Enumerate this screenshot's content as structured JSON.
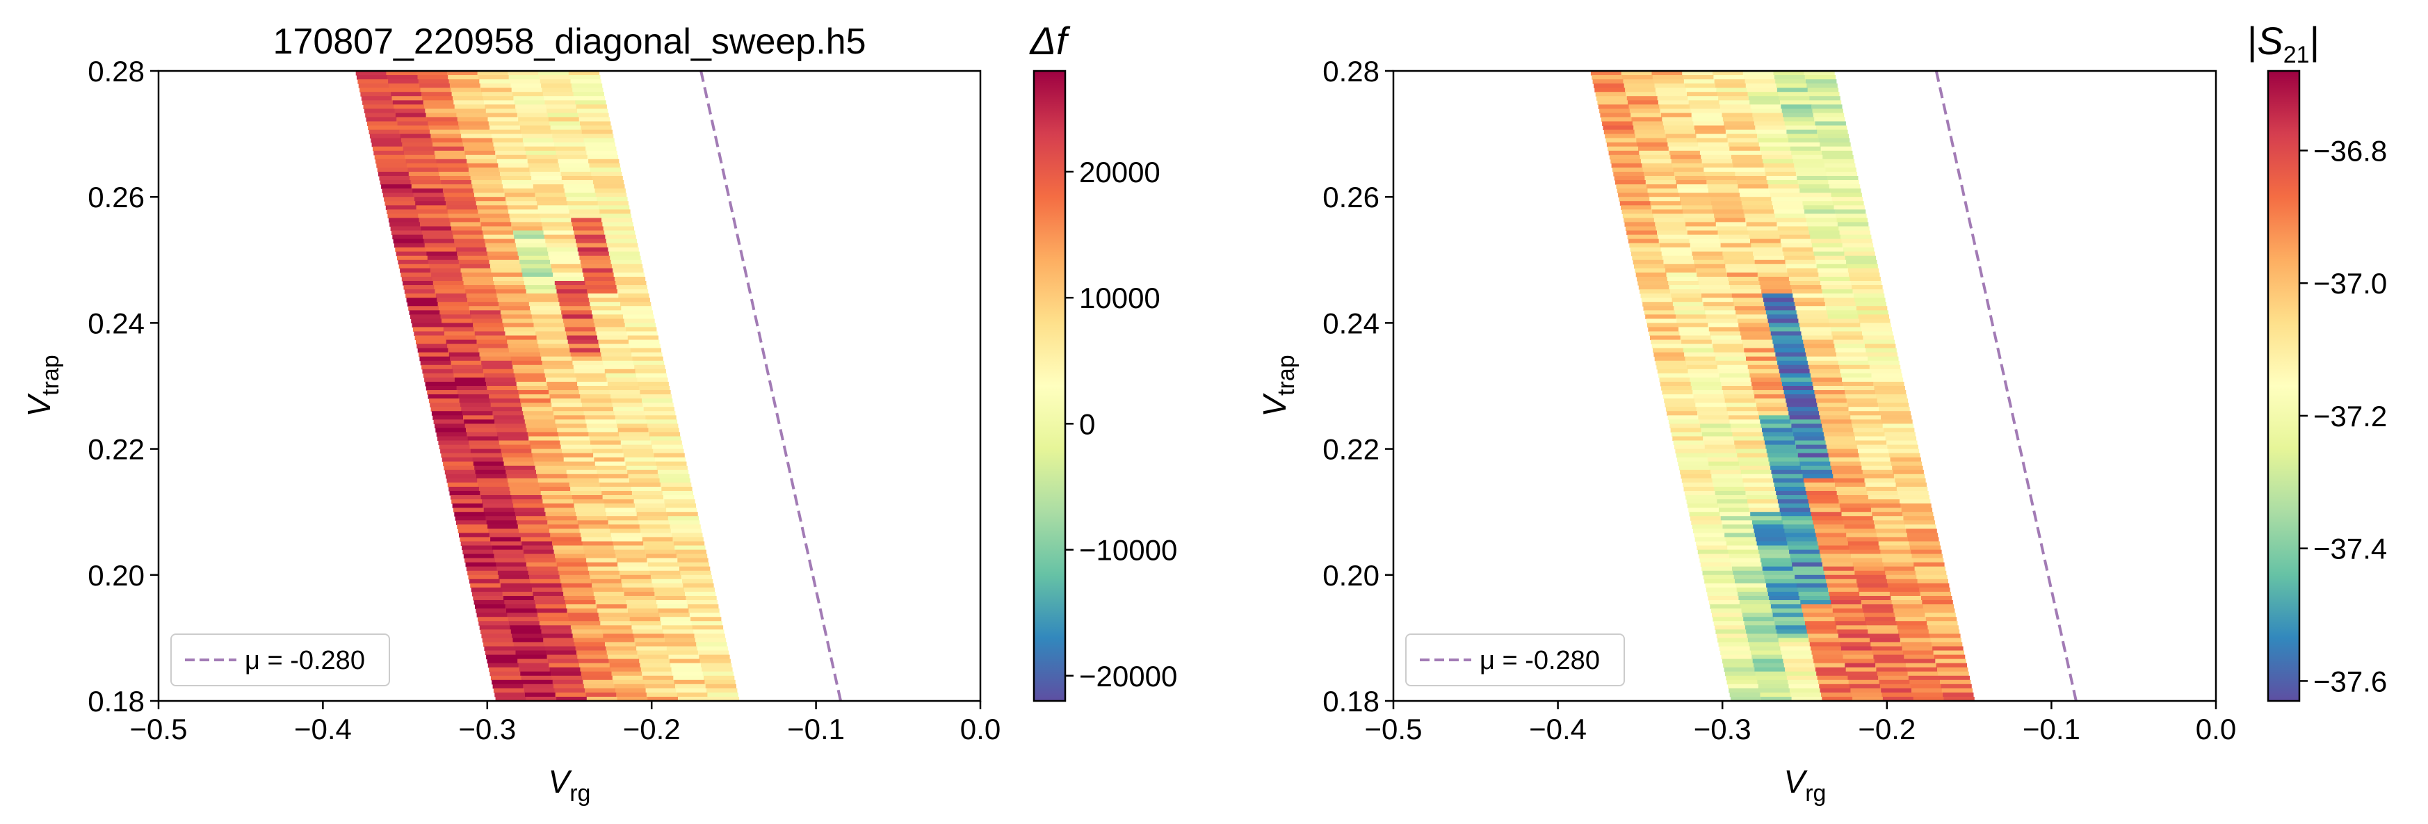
{
  "chart_data": [
    {
      "type": "heatmap",
      "title": "170807_220958_diagonal_sweep.h5",
      "xlabel": {
        "main": "V",
        "sub": "rg"
      },
      "ylabel": {
        "main": "V",
        "sub": "trap"
      },
      "xlim": [
        -0.5,
        0.0
      ],
      "ylim": [
        0.18,
        0.28
      ],
      "xticks": [
        -0.5,
        -0.4,
        -0.3,
        -0.2,
        -0.1,
        0.0
      ],
      "xtick_labels": [
        "−0.5",
        "−0.4",
        "−0.3",
        "−0.2",
        "−0.1",
        "0.0"
      ],
      "yticks": [
        0.18,
        0.2,
        0.22,
        0.24,
        0.26,
        0.28
      ],
      "ytick_labels": [
        "0.18",
        "0.20",
        "0.22",
        "0.24",
        "0.26",
        "0.28"
      ],
      "colormap": "Spectral_r",
      "colorbar": {
        "title": "Δf",
        "range": [
          -22000,
          28000
        ],
        "ticks": [
          -20000,
          -10000,
          0,
          10000,
          20000
        ],
        "tick_labels": [
          "−20000",
          "−10000",
          "0",
          "10000",
          "20000"
        ]
      },
      "sweep_region": {
        "x_left_at_top": -0.38,
        "x_left_at_bottom": -0.295,
        "width": 0.148
      },
      "column_values": [
        22000,
        20000,
        16000,
        10000,
        6000,
        4000,
        4000,
        4000
      ],
      "column_values_low": [
        24000,
        26000,
        22000,
        16000,
        12000,
        10000,
        8000,
        6000
      ],
      "features": [
        {
          "col": 5,
          "y_from": 0.235,
          "y_to": 0.247,
          "value": 20000
        },
        {
          "col": 4,
          "y_from": 0.245,
          "y_to": 0.255,
          "value": -3000
        },
        {
          "col": 6,
          "y_from": 0.245,
          "y_to": 0.257,
          "value": 20000
        }
      ],
      "line": {
        "x_top": -0.17,
        "x_bottom": -0.085,
        "color": "#a27bb5",
        "style": "dashed"
      },
      "legend": {
        "label": "μ = -0.280",
        "position": "lower left"
      }
    },
    {
      "type": "heatmap",
      "title": "",
      "xlabel": {
        "main": "V",
        "sub": "rg"
      },
      "ylabel": {
        "main": "V",
        "sub": "trap"
      },
      "xlim": [
        -0.5,
        0.0
      ],
      "ylim": [
        0.18,
        0.28
      ],
      "xticks": [
        -0.5,
        -0.4,
        -0.3,
        -0.2,
        -0.1,
        0.0
      ],
      "xtick_labels": [
        "−0.5",
        "−0.4",
        "−0.3",
        "−0.2",
        "−0.1",
        "0.0"
      ],
      "yticks": [
        0.18,
        0.2,
        0.22,
        0.24,
        0.26,
        0.28
      ],
      "ytick_labels": [
        "0.18",
        "0.20",
        "0.22",
        "0.24",
        "0.26",
        "0.28"
      ],
      "colormap": "Spectral_r",
      "colorbar": {
        "title": "|S21|",
        "range": [
          -37.63,
          -36.68
        ],
        "ticks": [
          -37.6,
          -37.4,
          -37.2,
          -37.0,
          -36.8
        ],
        "tick_labels": [
          "−37.6",
          "−37.4",
          "−37.2",
          "−37.0",
          "−36.8"
        ]
      },
      "sweep_region": {
        "x_left_at_top": -0.38,
        "x_left_at_bottom": -0.295,
        "width": 0.148
      },
      "column_values": [
        -36.92,
        -36.96,
        -37.02,
        -37.08,
        -37.12,
        -37.2,
        -37.32,
        -37.3
      ],
      "column_values_low": [
        -37.25,
        -37.35,
        -37.2,
        -36.9,
        -36.85,
        -36.85,
        -36.88,
        -36.9
      ],
      "features": [
        {
          "col": 4,
          "y_from": 0.215,
          "y_to": 0.245,
          "value": -37.55
        },
        {
          "col": 3,
          "y_from": 0.195,
          "y_to": 0.225,
          "value": -37.5
        },
        {
          "col": 2,
          "y_from": 0.19,
          "y_to": 0.21,
          "value": -37.45
        }
      ],
      "line": {
        "x_top": -0.17,
        "x_bottom": -0.085,
        "color": "#a27bb5",
        "style": "dashed"
      },
      "legend": {
        "label": "μ = -0.280",
        "position": "lower left"
      }
    }
  ]
}
